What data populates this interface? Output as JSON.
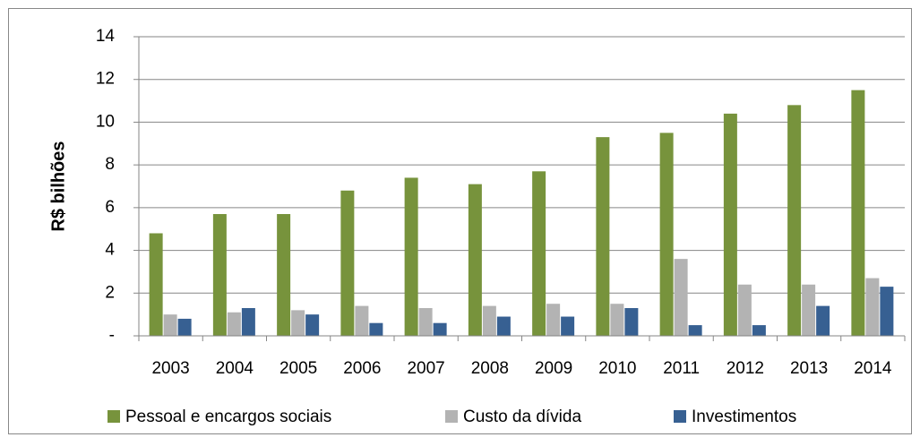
{
  "chart_data": {
    "type": "bar",
    "y_label": "R$ bilhões",
    "categories": [
      "2003",
      "2004",
      "2005",
      "2006",
      "2007",
      "2008",
      "2009",
      "2010",
      "2011",
      "2012",
      "2013",
      "2014"
    ],
    "series": [
      {
        "name": "Pessoal e encargos sociais",
        "color": "#77933c",
        "values": [
          4.8,
          5.7,
          5.7,
          6.8,
          7.4,
          7.1,
          7.7,
          9.3,
          9.5,
          10.4,
          10.8,
          11.5
        ]
      },
      {
        "name": "Custo da dívida",
        "color": "#b3b3b3",
        "values": [
          1.0,
          1.1,
          1.2,
          1.4,
          1.3,
          1.4,
          1.5,
          1.5,
          3.6,
          2.4,
          2.4,
          2.7
        ]
      },
      {
        "name": "Investimentos",
        "color": "#376092",
        "values": [
          0.8,
          1.3,
          1.0,
          0.6,
          0.6,
          0.9,
          0.9,
          1.3,
          0.5,
          0.5,
          1.4,
          2.3
        ]
      }
    ],
    "ylim": [
      0,
      14
    ],
    "yticks": [
      {
        "value": 0,
        "label": "-"
      },
      2,
      4,
      6,
      8,
      10,
      12,
      14
    ],
    "grid": true,
    "legend": "bottom"
  }
}
